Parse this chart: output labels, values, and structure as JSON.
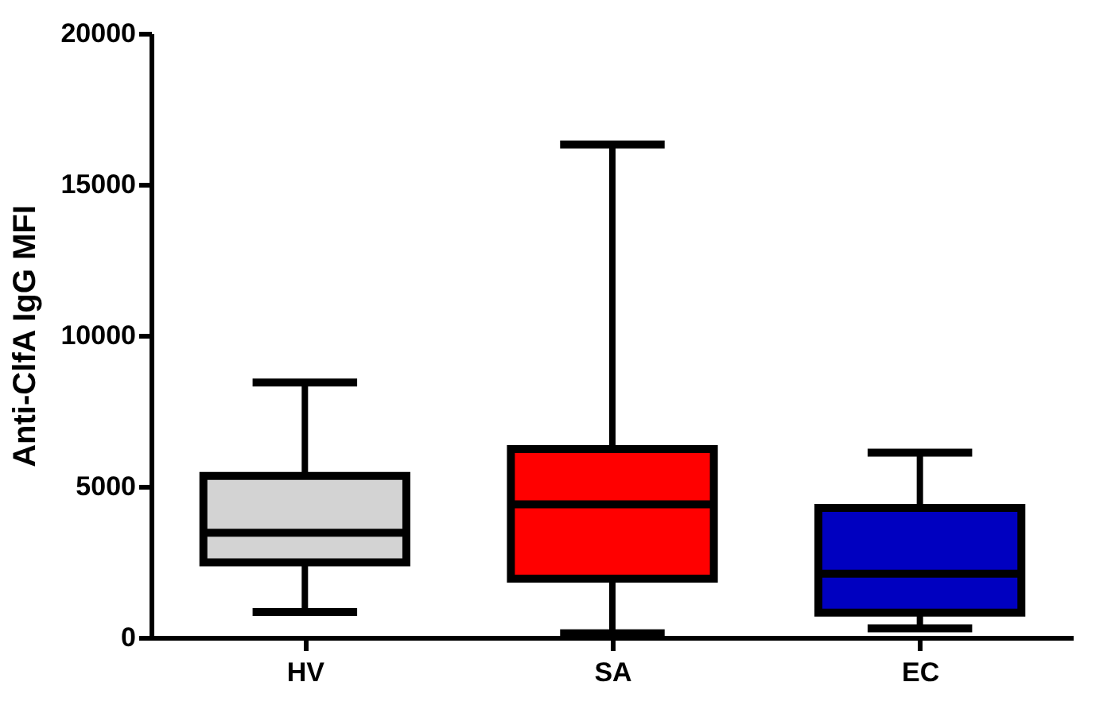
{
  "chart_data": {
    "type": "box",
    "ylabel": "Anti-ClfA IgG MFI",
    "categories": [
      "HV",
      "SA",
      "EC"
    ],
    "boxes": [
      {
        "low": 840,
        "q1": 2490,
        "median": 3470,
        "q3": 5350,
        "high": 8440
      },
      {
        "low": 140,
        "q1": 1950,
        "median": 4410,
        "q3": 6240,
        "high": 16320
      },
      {
        "low": 300,
        "q1": 820,
        "median": 2110,
        "q3": 4290,
        "high": 6120
      }
    ],
    "colors": [
      "#d3d3d3",
      "#ff0000",
      "#0000c0"
    ],
    "ylim": [
      0,
      20000
    ],
    "yticks": [
      0,
      5000,
      10000,
      15000,
      20000
    ],
    "grid": false
  }
}
